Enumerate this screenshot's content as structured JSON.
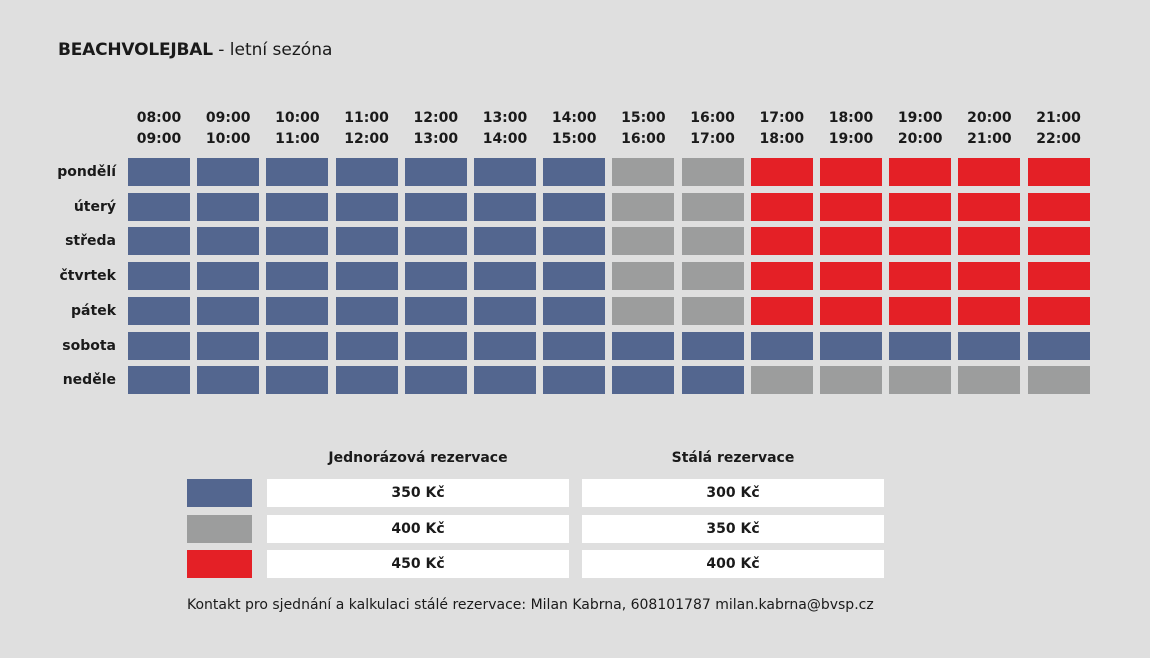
{
  "title": {
    "main": "BEACHVOLEJBAL",
    "sub": " - letní sezóna"
  },
  "colors": {
    "blue": "#53668f",
    "gray": "#9c9d9d",
    "red": "#e42026"
  },
  "time_slots": [
    {
      "start": "08:00",
      "end": "09:00"
    },
    {
      "start": "09:00",
      "end": "10:00"
    },
    {
      "start": "10:00",
      "end": "11:00"
    },
    {
      "start": "11:00",
      "end": "12:00"
    },
    {
      "start": "12:00",
      "end": "13:00"
    },
    {
      "start": "13:00",
      "end": "14:00"
    },
    {
      "start": "14:00",
      "end": "15:00"
    },
    {
      "start": "15:00",
      "end": "16:00"
    },
    {
      "start": "16:00",
      "end": "17:00"
    },
    {
      "start": "17:00",
      "end": "18:00"
    },
    {
      "start": "18:00",
      "end": "19:00"
    },
    {
      "start": "19:00",
      "end": "20:00"
    },
    {
      "start": "20:00",
      "end": "21:00"
    },
    {
      "start": "21:00",
      "end": "22:00"
    }
  ],
  "days": [
    {
      "name": "pondělí",
      "slots": [
        "blue",
        "blue",
        "blue",
        "blue",
        "blue",
        "blue",
        "blue",
        "gray",
        "gray",
        "red",
        "red",
        "red",
        "red",
        "red"
      ]
    },
    {
      "name": "úterý",
      "slots": [
        "blue",
        "blue",
        "blue",
        "blue",
        "blue",
        "blue",
        "blue",
        "gray",
        "gray",
        "red",
        "red",
        "red",
        "red",
        "red"
      ]
    },
    {
      "name": "středa",
      "slots": [
        "blue",
        "blue",
        "blue",
        "blue",
        "blue",
        "blue",
        "blue",
        "gray",
        "gray",
        "red",
        "red",
        "red",
        "red",
        "red"
      ]
    },
    {
      "name": "čtvrtek",
      "slots": [
        "blue",
        "blue",
        "blue",
        "blue",
        "blue",
        "blue",
        "blue",
        "gray",
        "gray",
        "red",
        "red",
        "red",
        "red",
        "red"
      ]
    },
    {
      "name": "pátek",
      "slots": [
        "blue",
        "blue",
        "blue",
        "blue",
        "blue",
        "blue",
        "blue",
        "gray",
        "gray",
        "red",
        "red",
        "red",
        "red",
        "red"
      ]
    },
    {
      "name": "sobota",
      "slots": [
        "blue",
        "blue",
        "blue",
        "blue",
        "blue",
        "blue",
        "blue",
        "blue",
        "blue",
        "blue",
        "blue",
        "blue",
        "blue",
        "blue"
      ]
    },
    {
      "name": "neděle",
      "slots": [
        "blue",
        "blue",
        "blue",
        "blue",
        "blue",
        "blue",
        "blue",
        "blue",
        "blue",
        "gray",
        "gray",
        "gray",
        "gray",
        "gray"
      ]
    }
  ],
  "legend": {
    "single_header": "Jednorázová  rezervace",
    "permanent_header": "Stálá  rezervace",
    "rows": [
      {
        "color": "blue",
        "single": "350  Kč",
        "permanent": "300  Kč"
      },
      {
        "color": "gray",
        "single": "400  Kč",
        "permanent": "350  Kč"
      },
      {
        "color": "red",
        "single": "450  Kč",
        "permanent": "400  Kč"
      }
    ]
  },
  "footer": "Kontakt pro sjednání a kalkulaci stálé rezervace: Milan Kabrna, 608101787 milan.kabrna@bvsp.cz"
}
